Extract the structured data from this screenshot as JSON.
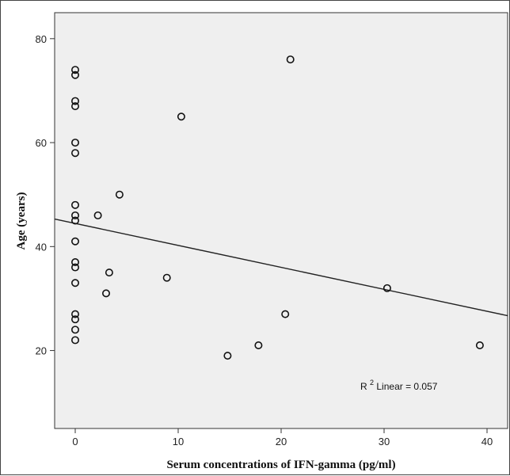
{
  "chart_data": {
    "type": "scatter",
    "xlabel": "Serum concentrations of IFN-gamma (pg/ml)",
    "ylabel": "Age (years)",
    "xlim": [
      -2,
      42
    ],
    "ylim": [
      5,
      85
    ],
    "xticks": [
      0,
      10,
      20,
      30,
      40
    ],
    "yticks": [
      20,
      40,
      60,
      80
    ],
    "grid": false,
    "annotation": {
      "base": "R",
      "sup": "2",
      "text": " Linear = 0.057"
    },
    "fit_line": {
      "x": [
        -2,
        42
      ],
      "y": [
        45.3,
        26.7
      ]
    },
    "points": [
      {
        "x": 0,
        "y": 74
      },
      {
        "x": 0,
        "y": 73
      },
      {
        "x": 0,
        "y": 68
      },
      {
        "x": 0,
        "y": 67
      },
      {
        "x": 0,
        "y": 60
      },
      {
        "x": 0,
        "y": 58
      },
      {
        "x": 0,
        "y": 48
      },
      {
        "x": 0,
        "y": 46
      },
      {
        "x": 0,
        "y": 45
      },
      {
        "x": 0,
        "y": 41
      },
      {
        "x": 0,
        "y": 37
      },
      {
        "x": 0,
        "y": 36
      },
      {
        "x": 0,
        "y": 33
      },
      {
        "x": 0,
        "y": 27
      },
      {
        "x": 0,
        "y": 26
      },
      {
        "x": 0,
        "y": 24
      },
      {
        "x": 0,
        "y": 22
      },
      {
        "x": 2.2,
        "y": 46
      },
      {
        "x": 4.3,
        "y": 50
      },
      {
        "x": 3.3,
        "y": 35
      },
      {
        "x": 3.0,
        "y": 31
      },
      {
        "x": 8.9,
        "y": 34
      },
      {
        "x": 10.3,
        "y": 65
      },
      {
        "x": 14.8,
        "y": 19
      },
      {
        "x": 17.8,
        "y": 21
      },
      {
        "x": 20.4,
        "y": 27
      },
      {
        "x": 20.9,
        "y": 76
      },
      {
        "x": 30.3,
        "y": 32
      },
      {
        "x": 39.3,
        "y": 21
      }
    ],
    "colors": {
      "plot_bg": "#efefef",
      "marker": "#111111",
      "line": "#222222"
    }
  }
}
